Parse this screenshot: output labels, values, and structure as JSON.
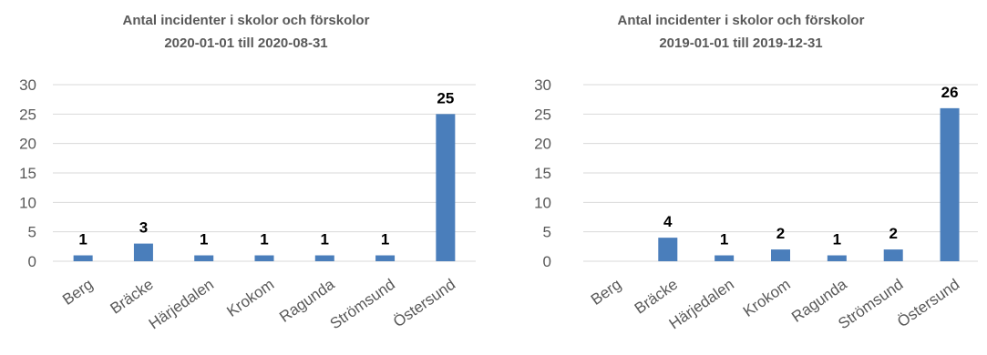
{
  "chart_data": [
    {
      "type": "bar",
      "title": "Antal incidenter i skolor och förskolor",
      "subtitle": "2020-01-01 till 2020-08-31",
      "categories": [
        "Berg",
        "Bräcke",
        "Härjedalen",
        "Krokom",
        "Ragunda",
        "Strömsund",
        "Östersund"
      ],
      "values": [
        1,
        3,
        1,
        1,
        1,
        1,
        25
      ],
      "data_labels": [
        "1",
        "3",
        "1",
        "1",
        "1",
        "1",
        "25"
      ],
      "yticks": [
        "0",
        "5",
        "10",
        "15",
        "20",
        "25",
        "30"
      ],
      "ylim": [
        0,
        30
      ],
      "xlabel": "",
      "ylabel": "",
      "grid": true,
      "bar_color": "#4A7EBB",
      "legend": "none"
    },
    {
      "type": "bar",
      "title": "Antal incidenter i skolor och förskolor",
      "subtitle": "2019-01-01 till 2019-12-31",
      "categories": [
        "Berg",
        "Bräcke",
        "Härjedalen",
        "Krokom",
        "Ragunda",
        "Strömsund",
        "Östersund"
      ],
      "values": [
        0,
        4,
        1,
        2,
        1,
        2,
        26
      ],
      "data_labels": [
        "",
        "4",
        "1",
        "2",
        "1",
        "2",
        "26"
      ],
      "yticks": [
        "0",
        "5",
        "10",
        "15",
        "20",
        "25",
        "30"
      ],
      "ylim": [
        0,
        30
      ],
      "xlabel": "",
      "ylabel": "",
      "grid": true,
      "bar_color": "#4A7EBB",
      "legend": "none"
    }
  ]
}
